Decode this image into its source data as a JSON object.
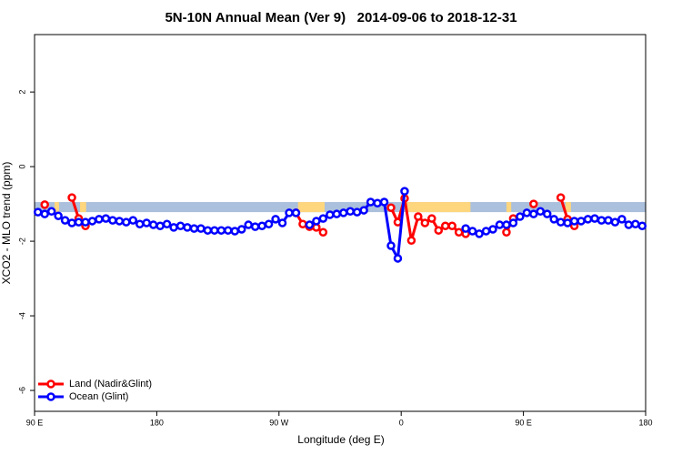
{
  "chart_data": {
    "type": "line",
    "title": "5N-10N Annual Mean (Ver 9)   2014-09-06 to 2018-12-31",
    "x_label": "Longitude (deg E)",
    "y_label": "XCO2 - MLO trend (ppm)",
    "xlim": [
      90,
      540
    ],
    "xticks": [
      {
        "value": 90,
        "label": "90 E"
      },
      {
        "value": 180,
        "label": "180"
      },
      {
        "value": 270,
        "label": "90 W"
      },
      {
        "value": 360,
        "label": "0"
      },
      {
        "value": 450,
        "label": "90 E"
      },
      {
        "value": 540,
        "label": "180"
      }
    ],
    "ylim": [
      -6.56,
      3.54
    ],
    "yticks": [
      -6,
      -4,
      -2,
      0,
      2
    ],
    "legend": "bottom-left",
    "band": {
      "ylim": [
        -1.22,
        -0.95
      ],
      "color": "#aac0dc",
      "land_color": "#fdd67e",
      "land_ranges": [
        [
          104.7,
          108
        ],
        [
          123.5,
          128
        ],
        [
          284,
          303.6
        ],
        [
          364,
          411
        ],
        [
          437.5,
          441
        ],
        [
          481,
          485
        ]
      ]
    },
    "x": [
      92.5,
      97.5,
      102.5,
      107.5,
      112.5,
      117.5,
      122.5,
      127.5,
      132.5,
      137.5,
      142.5,
      147.5,
      152.5,
      157.5,
      162.5,
      167.5,
      172.5,
      177.5,
      182.5,
      187.5,
      192.5,
      197.5,
      202.5,
      207.5,
      212.5,
      217.5,
      222.5,
      227.5,
      232.5,
      237.5,
      242.5,
      247.5,
      252.5,
      257.5,
      262.5,
      267.5,
      272.5,
      277.5,
      282.5,
      287.5,
      292.5,
      297.5,
      302.5,
      307.5,
      312.5,
      317.5,
      322.5,
      327.5,
      332.5,
      337.5,
      342.5,
      347.5,
      352.5,
      357.5,
      362.5,
      367.5,
      372.5,
      377.5,
      382.5,
      387.5,
      392.5,
      397.5,
      402.5,
      407.5,
      412.5,
      417.5,
      422.5,
      427.5,
      432.5,
      437.5,
      442.5,
      447.5,
      452.5,
      457.5,
      462.5,
      467.5,
      472.5,
      477.5,
      482.5,
      487.5,
      492.5,
      497.5,
      502.5,
      507.5,
      512.5,
      517.5,
      522.5,
      527.5,
      532.5,
      537.5
    ],
    "series": [
      {
        "name": "Land (Nadir&Glint)",
        "color": "#ff0000",
        "values": [
          null,
          -1.02,
          null,
          null,
          null,
          -0.83,
          -1.39,
          -1.59,
          null,
          null,
          null,
          null,
          null,
          null,
          null,
          null,
          null,
          null,
          null,
          null,
          null,
          null,
          null,
          null,
          null,
          null,
          null,
          null,
          null,
          null,
          null,
          null,
          null,
          null,
          null,
          null,
          null,
          null,
          -1.24,
          -1.54,
          -1.61,
          -1.63,
          -1.76,
          null,
          null,
          null,
          null,
          null,
          null,
          null,
          null,
          null,
          -1.1,
          -1.49,
          -0.85,
          -1.98,
          -1.34,
          -1.51,
          -1.39,
          -1.71,
          -1.59,
          -1.59,
          -1.76,
          -1.8,
          null,
          null,
          null,
          null,
          null,
          -1.76,
          -1.39,
          null,
          null,
          -1.0,
          null,
          null,
          null,
          -0.83,
          -1.41,
          -1.59,
          null,
          null,
          null,
          null,
          null,
          null,
          null,
          null,
          null,
          null
        ]
      },
      {
        "name": "Ocean (Glint)",
        "color": "#0000ff",
        "values": [
          -1.22,
          -1.27,
          -1.2,
          -1.32,
          -1.44,
          -1.51,
          -1.49,
          -1.49,
          -1.46,
          -1.41,
          -1.39,
          -1.44,
          -1.46,
          -1.49,
          -1.44,
          -1.54,
          -1.51,
          -1.56,
          -1.59,
          -1.54,
          -1.63,
          -1.59,
          -1.63,
          -1.66,
          -1.66,
          -1.71,
          -1.71,
          -1.71,
          -1.71,
          -1.73,
          -1.68,
          -1.56,
          -1.61,
          -1.59,
          -1.54,
          -1.41,
          -1.51,
          -1.24,
          -1.24,
          null,
          -1.56,
          -1.46,
          -1.39,
          -1.29,
          -1.27,
          -1.24,
          -1.2,
          -1.22,
          -1.17,
          -0.95,
          -0.98,
          -0.95,
          -2.12,
          -2.46,
          -0.66,
          null,
          null,
          null,
          null,
          null,
          null,
          null,
          null,
          -1.66,
          -1.73,
          -1.8,
          -1.73,
          -1.68,
          -1.56,
          -1.56,
          -1.51,
          -1.34,
          -1.24,
          -1.27,
          -1.2,
          -1.27,
          -1.41,
          -1.49,
          -1.51,
          -1.46,
          -1.46,
          -1.41,
          -1.39,
          -1.44,
          -1.44,
          -1.49,
          -1.41,
          -1.56,
          -1.54,
          -1.59
        ]
      }
    ]
  }
}
